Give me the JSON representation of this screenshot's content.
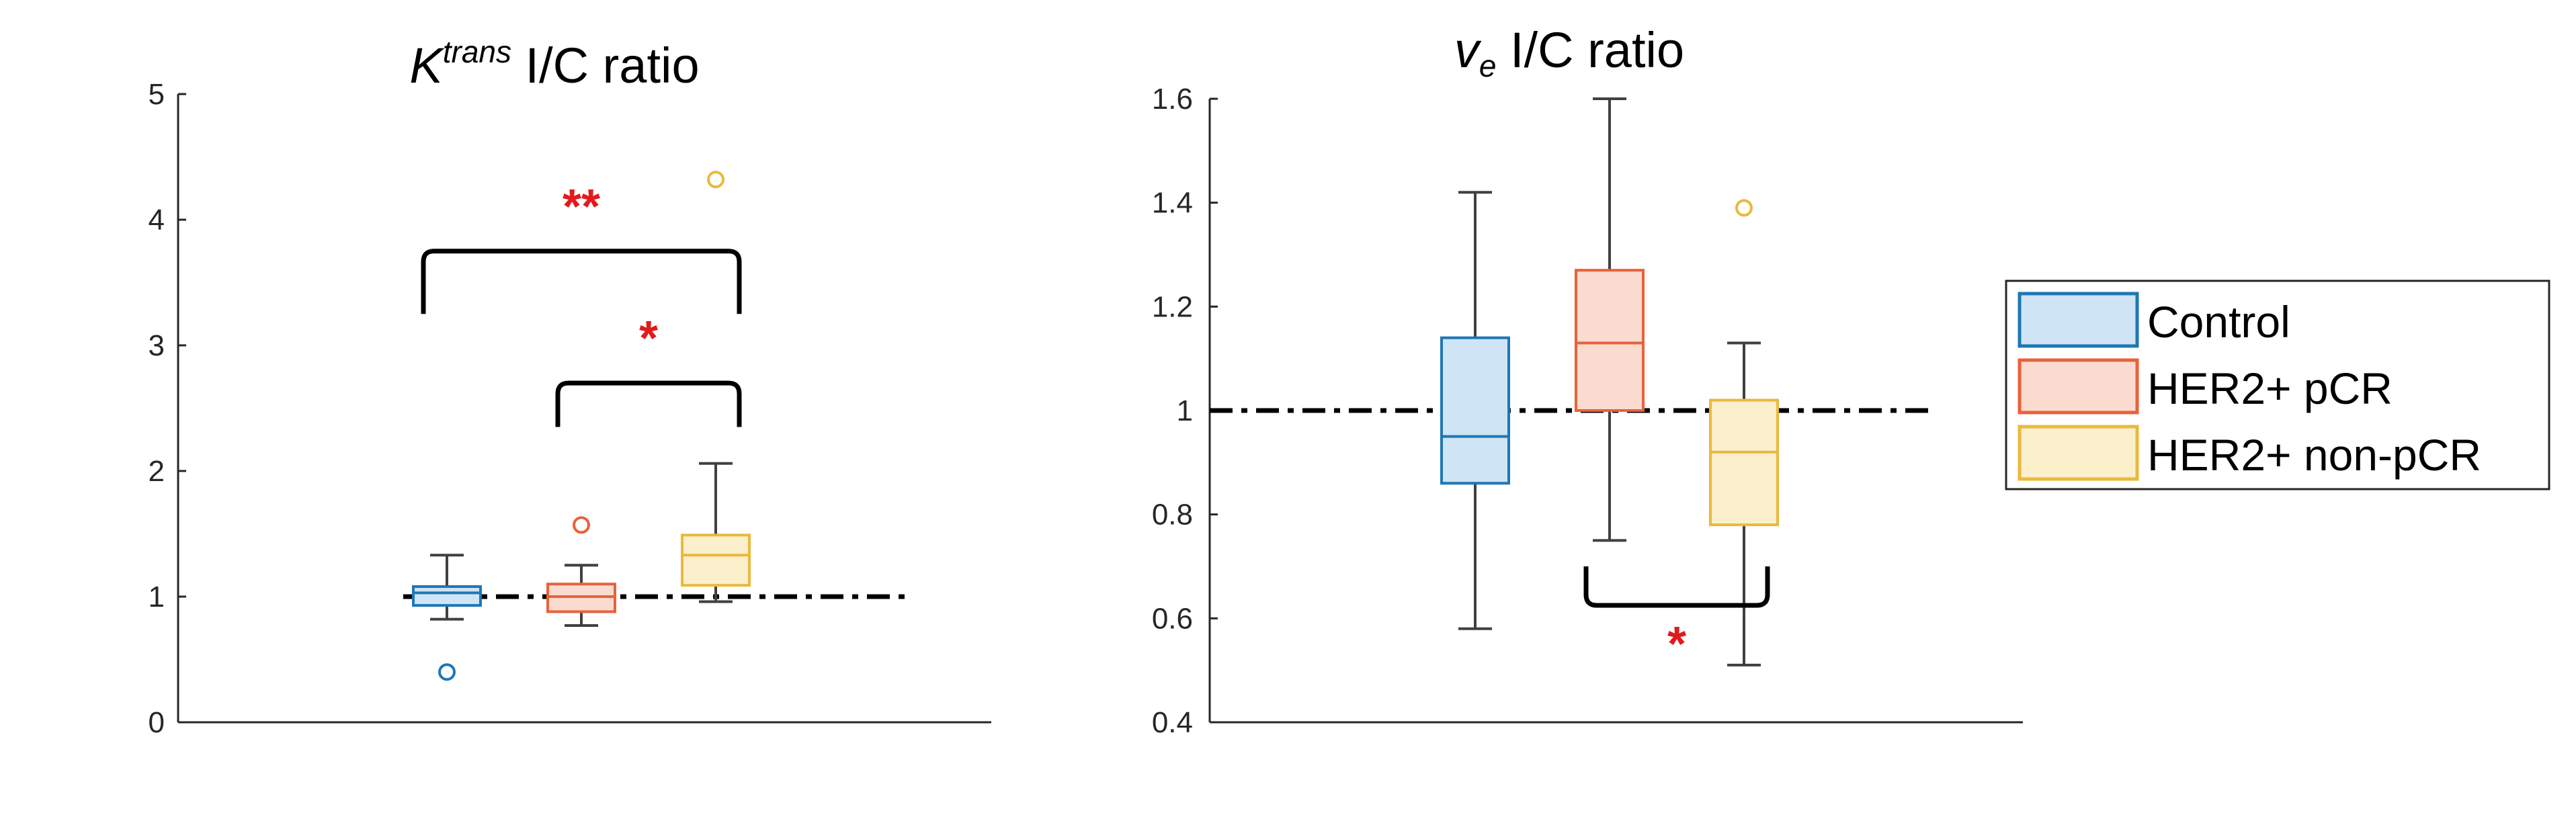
{
  "chart_data": [
    {
      "id": "ktrans",
      "type": "box",
      "title": {
        "symbol": "K",
        "superscript": "trans",
        "suffix": " I/C ratio"
      },
      "ylim": [
        0,
        5
      ],
      "yticks": [
        0,
        1,
        2,
        3,
        4,
        5
      ],
      "reference_line": 1,
      "series": [
        {
          "name": "Control",
          "color": "#1f77b4",
          "fill": "#cfe4f5",
          "q1": 0.93,
          "median": 1.03,
          "q3": 1.08,
          "whisker_low": 0.82,
          "whisker_high": 1.33,
          "outliers": [
            0.4
          ]
        },
        {
          "name": "HER2+ pCR",
          "color": "#e8613a",
          "fill": "#f9dccf",
          "q1": 0.88,
          "median": 1.0,
          "q3": 1.1,
          "whisker_low": 0.77,
          "whisker_high": 1.25,
          "outliers": [
            1.57
          ]
        },
        {
          "name": "HER2+ non-pCR",
          "color": "#eab93c",
          "fill": "#fbefcc",
          "q1": 1.09,
          "median": 1.33,
          "q3": 1.49,
          "whisker_low": 0.96,
          "whisker_high": 2.06,
          "outliers": [
            4.32
          ]
        }
      ],
      "brackets": [
        {
          "from": 0,
          "to": 2,
          "label": "**",
          "level": 3.75,
          "leg_end": 3.25,
          "direction": "up"
        },
        {
          "from": 1,
          "to": 2,
          "label": "*",
          "level": 2.7,
          "leg_end": 2.35,
          "direction": "up"
        }
      ]
    },
    {
      "id": "ve",
      "type": "box",
      "title": {
        "symbol": "v",
        "subscript": "e",
        "suffix": " I/C ratio"
      },
      "ylim": [
        0.4,
        1.6
      ],
      "yticks": [
        0.4,
        0.6,
        0.8,
        1,
        1.2,
        1.4,
        1.6
      ],
      "reference_line": 1,
      "series": [
        {
          "name": "Control",
          "color": "#1f77b4",
          "fill": "#cfe4f5",
          "q1": 0.86,
          "median": 0.95,
          "q3": 1.14,
          "whisker_low": 0.58,
          "whisker_high": 1.42,
          "outliers": []
        },
        {
          "name": "HER2+ pCR",
          "color": "#e8613a",
          "fill": "#f9dccf",
          "q1": 1.0,
          "median": 1.13,
          "q3": 1.27,
          "whisker_low": 0.75,
          "whisker_high": 1.6,
          "outliers": []
        },
        {
          "name": "HER2+ non-pCR",
          "color": "#eab93c",
          "fill": "#fbefcc",
          "q1": 0.78,
          "median": 0.92,
          "q3": 1.02,
          "whisker_low": 0.51,
          "whisker_high": 1.13,
          "outliers": [
            1.39
          ]
        }
      ],
      "brackets": [
        {
          "from": 1,
          "to": 2,
          "label": "*",
          "level": 0.625,
          "leg_end": 0.7,
          "direction": "down"
        }
      ]
    }
  ],
  "legend": {
    "placement": "right",
    "items": [
      {
        "label": "Control",
        "color": "#1f77b4",
        "fill": "#cfe4f5"
      },
      {
        "label": "HER2+ pCR",
        "color": "#e8613a",
        "fill": "#f9dccf"
      },
      {
        "label": "HER2+ non-pCR",
        "color": "#eab93c",
        "fill": "#fbefcc"
      }
    ]
  }
}
